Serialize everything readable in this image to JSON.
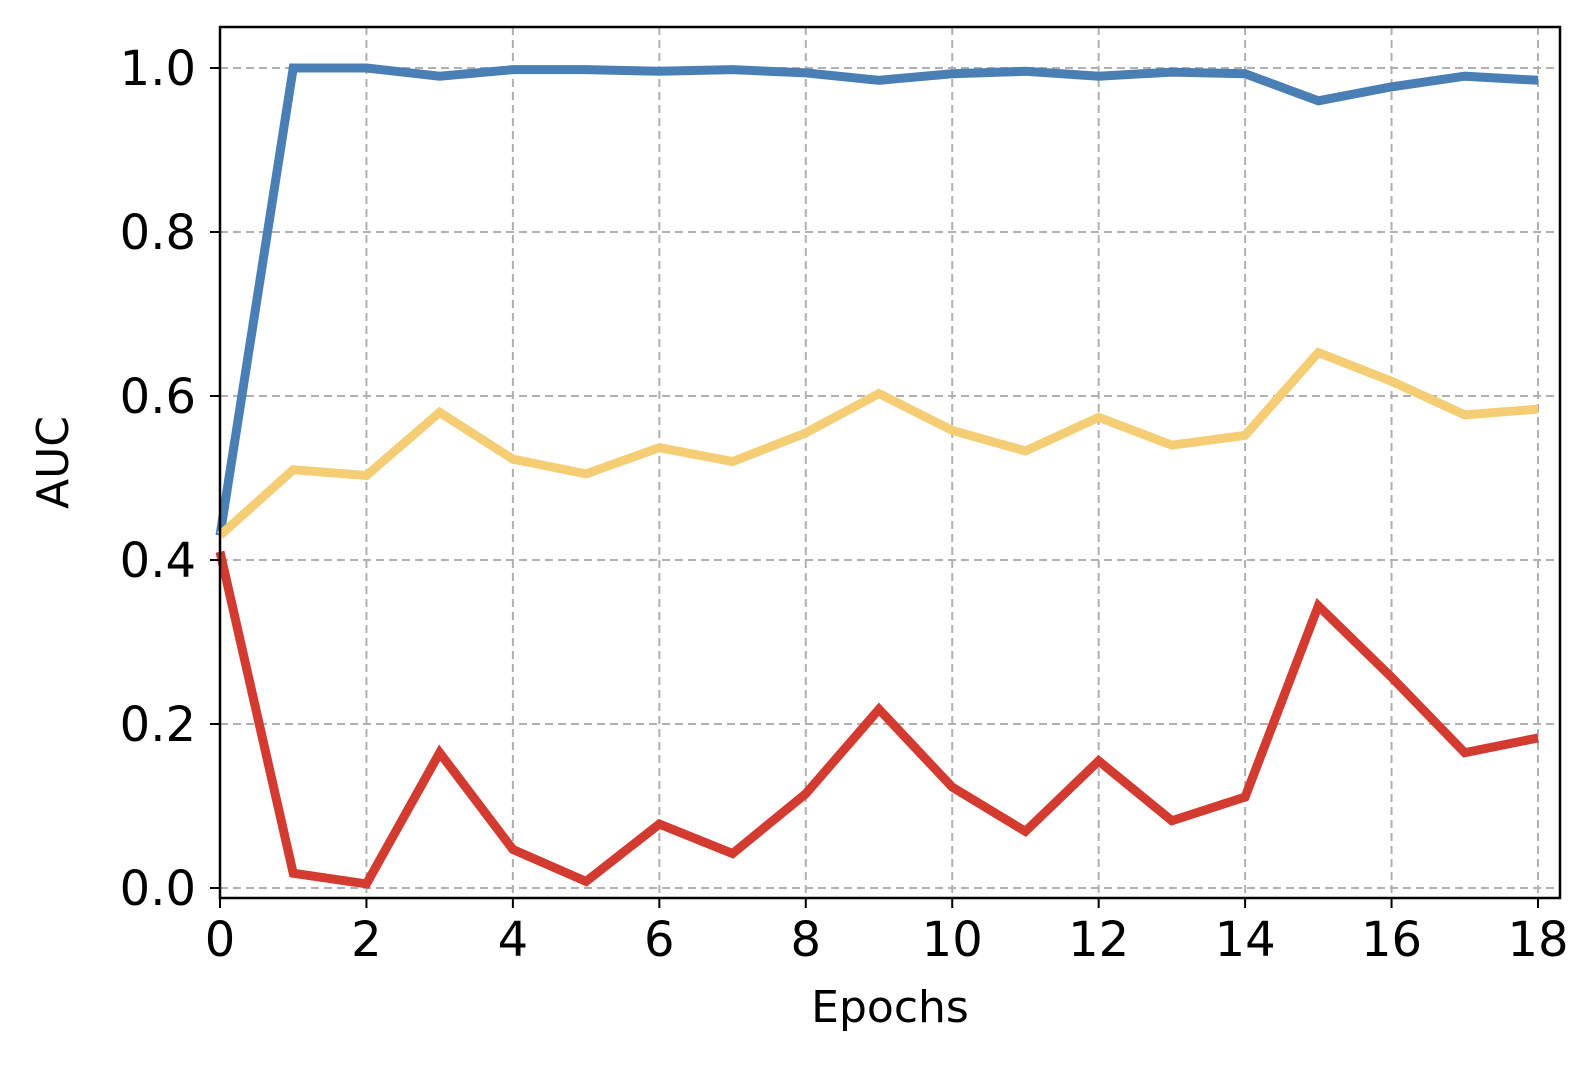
{
  "chart_data": {
    "type": "line",
    "title": "",
    "xlabel": "Epochs",
    "ylabel": "AUC",
    "xlim": [
      0,
      18.3
    ],
    "ylim": [
      -0.05,
      1.05
    ],
    "xticks": [
      0,
      2,
      4,
      6,
      8,
      10,
      12,
      14,
      16,
      18
    ],
    "yticks": [
      0.0,
      0.2,
      0.4,
      0.6,
      0.8,
      1.0
    ],
    "xtick_labels": [
      "0",
      "2",
      "4",
      "6",
      "8",
      "10",
      "12",
      "14",
      "16",
      "18"
    ],
    "ytick_labels": [
      "0.0",
      "0.2",
      "0.4",
      "0.6",
      "0.8",
      "1.0"
    ],
    "grid": true,
    "legend": "none",
    "x": [
      0,
      1,
      2,
      3,
      4,
      5,
      6,
      7,
      8,
      9,
      10,
      11,
      12,
      13,
      14,
      15,
      16,
      17,
      18
    ],
    "series": [
      {
        "color": "#4a7fb5",
        "values": [
          0.43,
          1.0,
          1.0,
          0.99,
          0.998,
          0.998,
          0.996,
          0.998,
          0.994,
          0.985,
          0.993,
          0.996,
          0.99,
          0.995,
          0.993,
          0.96,
          0.977,
          0.99,
          0.985
        ]
      },
      {
        "color": "#f5cd75",
        "values": [
          0.43,
          0.51,
          0.503,
          0.58,
          0.523,
          0.505,
          0.537,
          0.52,
          0.555,
          0.603,
          0.558,
          0.533,
          0.574,
          0.54,
          0.552,
          0.653,
          0.618,
          0.577,
          0.584
        ]
      },
      {
        "color": "#d43b30",
        "values": [
          0.41,
          0.018,
          0.005,
          0.165,
          0.047,
          0.008,
          0.078,
          0.042,
          0.115,
          0.218,
          0.123,
          0.069,
          0.155,
          0.082,
          0.111,
          0.344,
          0.257,
          0.165,
          0.183
        ]
      }
    ]
  }
}
